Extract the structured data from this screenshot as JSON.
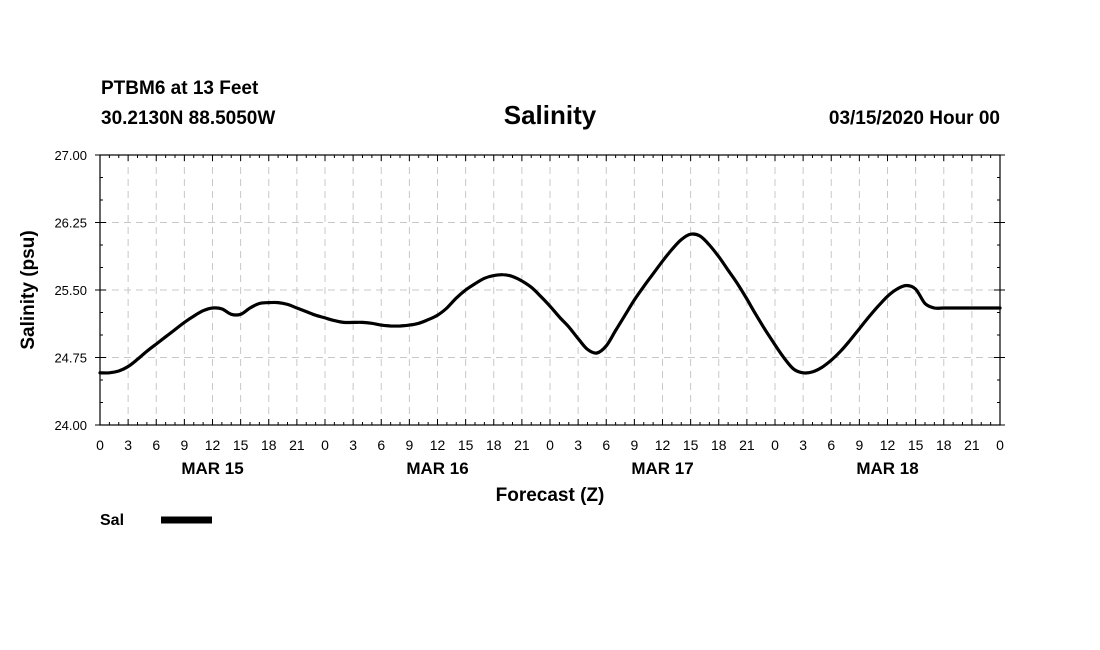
{
  "header": {
    "station": "PTBM6 at 13 Feet",
    "coords": "30.2130N 88.5050W",
    "title": "Salinity",
    "forecast_time": "03/15/2020 Hour 00"
  },
  "chart_data": {
    "type": "line",
    "title": "Salinity",
    "xlabel": "Forecast (Z)",
    "ylabel": "Salinity (psu)",
    "ylim": [
      24.0,
      27.0
    ],
    "xlim": [
      0,
      96
    ],
    "yticks": [
      "24.00",
      "24.75",
      "25.50",
      "26.25",
      "27.00"
    ],
    "ytick_values": [
      24.0,
      24.75,
      25.5,
      26.25,
      27.0
    ],
    "xtick_labels": [
      "0",
      "3",
      "6",
      "9",
      "12",
      "15",
      "18",
      "21",
      "0",
      "3",
      "6",
      "9",
      "12",
      "15",
      "18",
      "21",
      "0",
      "3",
      "6",
      "9",
      "12",
      "15",
      "18",
      "21",
      "0",
      "3",
      "6",
      "9",
      "12",
      "15",
      "18",
      "21",
      "0"
    ],
    "day_labels": [
      {
        "label": "MAR 15",
        "hour": 12
      },
      {
        "label": "MAR 16",
        "hour": 36
      },
      {
        "label": "MAR 17",
        "hour": 60
      },
      {
        "label": "MAR 18",
        "hour": 84
      }
    ],
    "grid": true,
    "legend_position": "bottom-left",
    "series": [
      {
        "name": "Sal",
        "color": "#000000",
        "x": [
          0,
          1,
          2,
          3,
          4,
          5,
          6,
          7,
          8,
          9,
          10,
          11,
          12,
          13,
          14,
          15,
          16,
          17,
          18,
          19,
          20,
          21,
          22,
          23,
          24,
          25,
          26,
          27,
          28,
          29,
          30,
          31,
          32,
          33,
          34,
          35,
          36,
          37,
          38,
          39,
          40,
          41,
          42,
          43,
          44,
          45,
          46,
          47,
          48,
          49,
          50,
          51,
          52,
          53,
          54,
          55,
          56,
          57,
          58,
          59,
          60,
          61,
          62,
          63,
          64,
          65,
          66,
          67,
          68,
          69,
          70,
          71,
          72,
          73,
          74,
          75,
          76,
          77,
          78,
          79,
          80,
          81,
          82,
          83,
          84,
          85,
          86,
          87,
          88,
          89,
          90,
          91,
          92,
          93,
          94,
          95,
          96
        ],
        "values": [
          24.58,
          24.58,
          24.6,
          24.65,
          24.73,
          24.82,
          24.9,
          24.98,
          25.06,
          25.14,
          25.21,
          25.27,
          25.3,
          25.29,
          25.23,
          25.23,
          25.3,
          25.35,
          25.36,
          25.36,
          25.34,
          25.3,
          25.26,
          25.22,
          25.19,
          25.16,
          25.14,
          25.14,
          25.14,
          25.13,
          25.11,
          25.1,
          25.1,
          25.11,
          25.13,
          25.17,
          25.22,
          25.3,
          25.41,
          25.5,
          25.57,
          25.63,
          25.66,
          25.67,
          25.65,
          25.6,
          25.53,
          25.43,
          25.32,
          25.2,
          25.09,
          24.96,
          24.84,
          24.8,
          24.88,
          25.05,
          25.22,
          25.39,
          25.54,
          25.68,
          25.82,
          25.95,
          26.06,
          26.12,
          26.1,
          26.0,
          25.87,
          25.72,
          25.57,
          25.4,
          25.22,
          25.05,
          24.89,
          24.74,
          24.62,
          24.58,
          24.59,
          24.64,
          24.72,
          24.82,
          24.94,
          25.07,
          25.2,
          25.32,
          25.43,
          25.51,
          25.55,
          25.51,
          25.35,
          25.3,
          25.3,
          25.3,
          25.3,
          25.3,
          25.3,
          25.3,
          25.3
        ]
      }
    ]
  }
}
